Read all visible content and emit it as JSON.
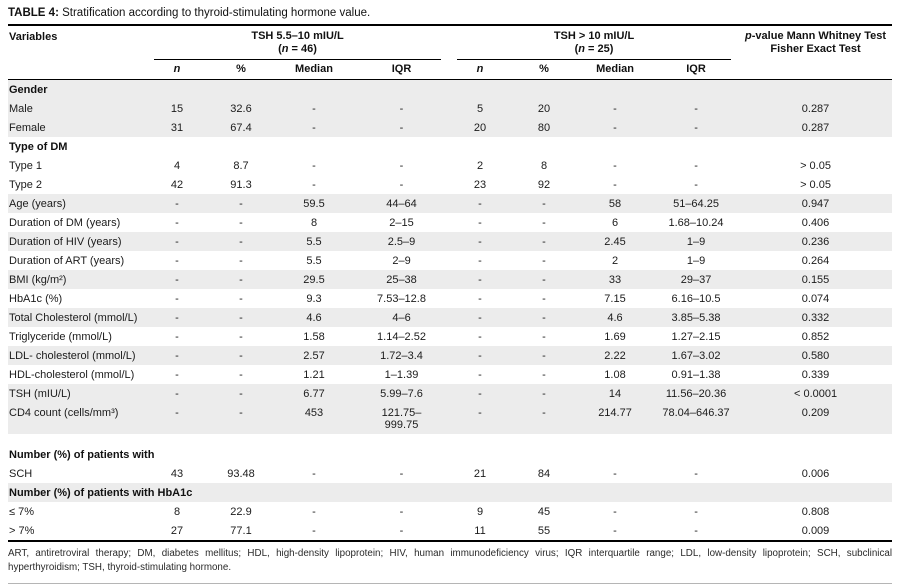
{
  "title": {
    "label": "TABLE 4:",
    "text": " Stratification according to thyroid-stimulating hormone value."
  },
  "header": {
    "variables": "Variables",
    "subheaders": [
      "n",
      "%",
      "Median",
      "IQR"
    ],
    "groups": [
      {
        "title": "TSH 5.5–10 mIU/L",
        "n_prefix": "(",
        "n_label": "n",
        "n_suffix": " = 46)"
      },
      {
        "title": "TSH > 10 mIU/L",
        "n_prefix": "(",
        "n_label": "n",
        "n_suffix": " = 25)"
      }
    ],
    "pvalue": {
      "line1_italic": "p",
      "line1_rest": "-value Mann Whitney Test",
      "line2": "Fisher Exact Test"
    }
  },
  "rows": [
    {
      "label": "Gender",
      "section": true,
      "shade": true
    },
    {
      "label": "Male",
      "shade": true,
      "cells": [
        "15",
        "32.6",
        "-",
        "-",
        "5",
        "20",
        "-",
        "-",
        "0.287"
      ]
    },
    {
      "label": "Female",
      "shade": true,
      "cells": [
        "31",
        "67.4",
        "-",
        "-",
        "20",
        "80",
        "-",
        "-",
        "0.287"
      ]
    },
    {
      "label": "Type of DM",
      "section": true,
      "shade": false
    },
    {
      "label": "Type 1",
      "shade": false,
      "cells": [
        "4",
        "8.7",
        "-",
        "-",
        "2",
        "8",
        "-",
        "-",
        "> 0.05"
      ]
    },
    {
      "label": "Type 2",
      "shade": false,
      "cells": [
        "42",
        "91.3",
        "-",
        "-",
        "23",
        "92",
        "-",
        "-",
        "> 0.05"
      ]
    },
    {
      "label": "Age (years)",
      "shade": true,
      "cells": [
        "-",
        "-",
        "59.5",
        "44–64",
        "-",
        "-",
        "58",
        "51–64.25",
        "0.947"
      ]
    },
    {
      "label": "Duration of DM (years)",
      "shade": false,
      "cells": [
        "-",
        "-",
        "8",
        "2–15",
        "-",
        "-",
        "6",
        "1.68–10.24",
        "0.406"
      ]
    },
    {
      "label": "Duration of HIV (years)",
      "shade": true,
      "cells": [
        "-",
        "-",
        "5.5",
        "2.5–9",
        "-",
        "-",
        "2.45",
        "1–9",
        "0.236"
      ]
    },
    {
      "label": "Duration of ART (years)",
      "shade": false,
      "cells": [
        "-",
        "-",
        "5.5",
        "2–9",
        "-",
        "-",
        "2",
        "1–9",
        "0.264"
      ]
    },
    {
      "label": "BMI (kg/m²)",
      "shade": true,
      "cells": [
        "-",
        "-",
        "29.5",
        "25–38",
        "-",
        "-",
        "33",
        "29–37",
        "0.155"
      ]
    },
    {
      "label": "HbA1c (%)",
      "shade": false,
      "cells": [
        "-",
        "-",
        "9.3",
        "7.53–12.8",
        "-",
        "-",
        "7.15",
        "6.16–10.5",
        "0.074"
      ]
    },
    {
      "label": "Total Cholesterol (mmol/L)",
      "shade": true,
      "cells": [
        "-",
        "-",
        "4.6",
        "4–6",
        "-",
        "-",
        "4.6",
        "3.85–5.38",
        "0.332"
      ]
    },
    {
      "label": "Triglyceride (mmol/L)",
      "shade": false,
      "cells": [
        "-",
        "-",
        "1.58",
        "1.14–2.52",
        "-",
        "-",
        "1.69",
        "1.27–2.15",
        "0.852"
      ]
    },
    {
      "label": "LDL- cholesterol (mmol/L)",
      "shade": true,
      "cells": [
        "-",
        "-",
        "2.57",
        "1.72–3.4",
        "-",
        "-",
        "2.22",
        "1.67–3.02",
        "0.580"
      ]
    },
    {
      "label": "HDL-cholesterol (mmol/L)",
      "shade": false,
      "cells": [
        "-",
        "-",
        "1.21",
        "1–1.39",
        "-",
        "-",
        "1.08",
        "0.91–1.38",
        "0.339"
      ]
    },
    {
      "label": "TSH (mIU/L)",
      "shade": true,
      "cells": [
        "-",
        "-",
        "6.77",
        "5.99–7.6",
        "-",
        "-",
        "14",
        "11.56–20.36",
        "< 0.0001"
      ]
    },
    {
      "label": "CD4 count (cells/mm³)",
      "shade": true,
      "cells": [
        "-",
        "-",
        "453",
        "121.75–\n999.75",
        "-",
        "-",
        "214.77",
        "78.04–646.37",
        "0.209"
      ]
    },
    {
      "spacer": true
    },
    {
      "label": "Number (%) of patients with",
      "section": true,
      "shade": false
    },
    {
      "label": "SCH",
      "shade": false,
      "cells": [
        "43",
        "93.48",
        "-",
        "-",
        "21",
        "84",
        "-",
        "-",
        "0.006"
      ]
    },
    {
      "label": "Number (%) of patients with HbA1c",
      "section": true,
      "shade": true
    },
    {
      "label": "≤ 7%",
      "shade": false,
      "cells": [
        "8",
        "22.9",
        "-",
        "-",
        "9",
        "45",
        "-",
        "-",
        "0.808"
      ]
    },
    {
      "label": "> 7%",
      "shade": false,
      "cells": [
        "27",
        "77.1",
        "-",
        "-",
        "11",
        "55",
        "-",
        "-",
        "0.009"
      ]
    }
  ],
  "footnote": "ART, antiretroviral therapy; DM, diabetes mellitus; HDL, high-density lipoprotein; HIV, human immunodeficiency virus; IQR interquartile range; LDL, low-density lipoprotein; SCH, subclinical hyperthyroidism; TSH, thyroid-stimulating hormone."
}
